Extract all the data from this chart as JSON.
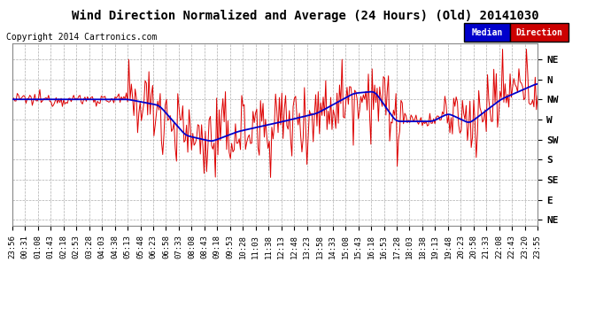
{
  "title": "Wind Direction Normalized and Average (24 Hours) (Old) 20141030",
  "copyright": "Copyright 2014 Cartronics.com",
  "legend_median_text": "Median",
  "legend_direction_text": "Direction",
  "legend_median_bg": "#0000cc",
  "legend_direction_bg": "#cc0000",
  "legend_text_color": "#ffffff",
  "background_color": "#ffffff",
  "plot_bg": "#ffffff",
  "grid_color": "#999999",
  "ytick_labels": [
    "NE",
    "N",
    "NW",
    "W",
    "SW",
    "S",
    "SE",
    "E",
    "NE"
  ],
  "ytick_values": [
    8,
    7,
    6,
    5,
    4,
    3,
    2,
    1,
    0
  ],
  "xtick_labels": [
    "23:56",
    "00:31",
    "01:08",
    "01:43",
    "02:18",
    "02:53",
    "03:28",
    "04:03",
    "04:38",
    "05:13",
    "05:48",
    "06:23",
    "06:58",
    "07:33",
    "08:08",
    "08:43",
    "09:18",
    "09:53",
    "10:28",
    "11:03",
    "11:38",
    "12:13",
    "12:48",
    "13:23",
    "13:58",
    "14:33",
    "15:08",
    "15:43",
    "16:18",
    "16:53",
    "17:28",
    "18:03",
    "18:38",
    "19:13",
    "19:48",
    "20:23",
    "20:58",
    "21:33",
    "22:08",
    "22:43",
    "23:20",
    "23:55"
  ],
  "ylim": [
    -0.3,
    8.8
  ],
  "red_line_color": "#dd0000",
  "blue_line_color": "#0000cc",
  "title_fontsize": 10,
  "copyright_fontsize": 7,
  "axis_fontsize": 6.5,
  "ytick_fontsize": 8
}
